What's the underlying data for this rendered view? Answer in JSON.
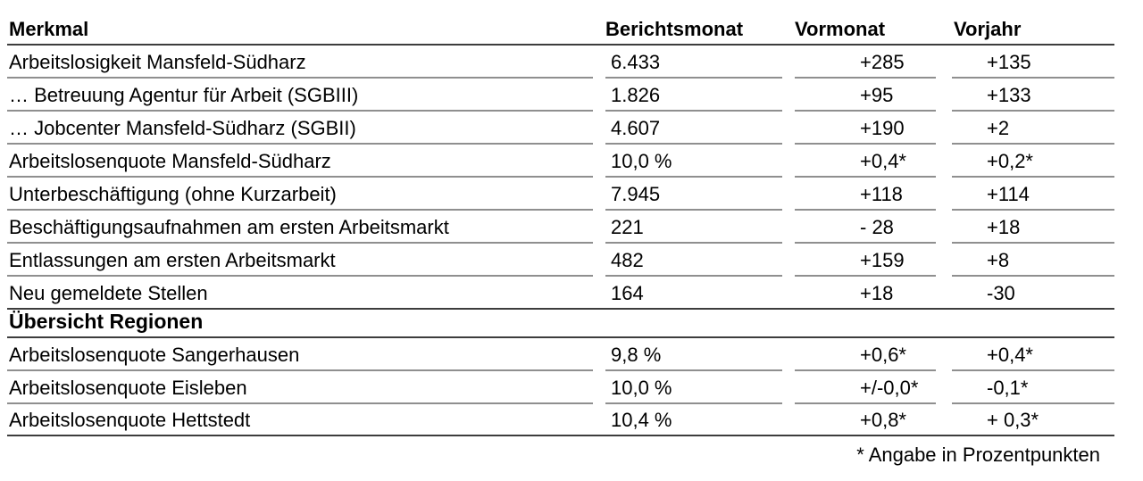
{
  "table": {
    "columns": {
      "merkmal": "Merkmal",
      "berichtsmonat": "Berichtsmonat",
      "vormonat": "Vormonat",
      "vorjahr": "Vorjahr"
    },
    "rows": [
      {
        "merkmal": "Arbeitslosigkeit Mansfeld-Südharz",
        "berichtsmonat": "6.433",
        "vormonat": "+285",
        "vorjahr": "+135"
      },
      {
        "merkmal": "… Betreuung Agentur für Arbeit (SGBIII)",
        "berichtsmonat": "1.826",
        "vormonat": "+95",
        "vorjahr": "+133"
      },
      {
        "merkmal": "… Jobcenter Mansfeld-Südharz (SGBII)",
        "berichtsmonat": "4.607",
        "vormonat": "+190",
        "vorjahr": "+2"
      },
      {
        "merkmal": "Arbeitslosenquote Mansfeld-Südharz",
        "berichtsmonat": "10,0 %",
        "vormonat": "+0,4*",
        "vorjahr": "+0,2*"
      },
      {
        "merkmal": "Unterbeschäftigung (ohne Kurzarbeit)",
        "berichtsmonat": "7.945",
        "vormonat": "+118",
        "vorjahr": "+114"
      },
      {
        "merkmal": "Beschäftigungsaufnahmen am ersten Arbeitsmarkt",
        "berichtsmonat": "221",
        "vormonat": "- 28",
        "vorjahr": "+18"
      },
      {
        "merkmal": "Entlassungen am ersten Arbeitsmarkt",
        "berichtsmonat": "482",
        "vormonat": "+159",
        "vorjahr": "+8"
      },
      {
        "merkmal": "Neu gemeldete Stellen",
        "berichtsmonat": "164",
        "vormonat": "+18",
        "vorjahr": "-30"
      }
    ],
    "section_header": "Übersicht Regionen",
    "region_rows": [
      {
        "merkmal": "Arbeitslosenquote Sangerhausen",
        "berichtsmonat": "9,8 %",
        "vormonat": "+0,6*",
        "vorjahr": "+0,4*"
      },
      {
        "merkmal": "Arbeitslosenquote Eisleben",
        "berichtsmonat": "10,0 %",
        "vormonat": "+/-0,0*",
        "vorjahr": "-0,1*"
      },
      {
        "merkmal": "Arbeitslosenquote Hettstedt",
        "berichtsmonat": "10,4 %",
        "vormonat": "+0,8*",
        "vorjahr": "+ 0,3*"
      }
    ],
    "footnote": "* Angabe in Prozentpunkten",
    "colors": {
      "cell_line": "#8f8f8f",
      "rule_line": "#3d3d3d",
      "text": "#000000"
    }
  }
}
